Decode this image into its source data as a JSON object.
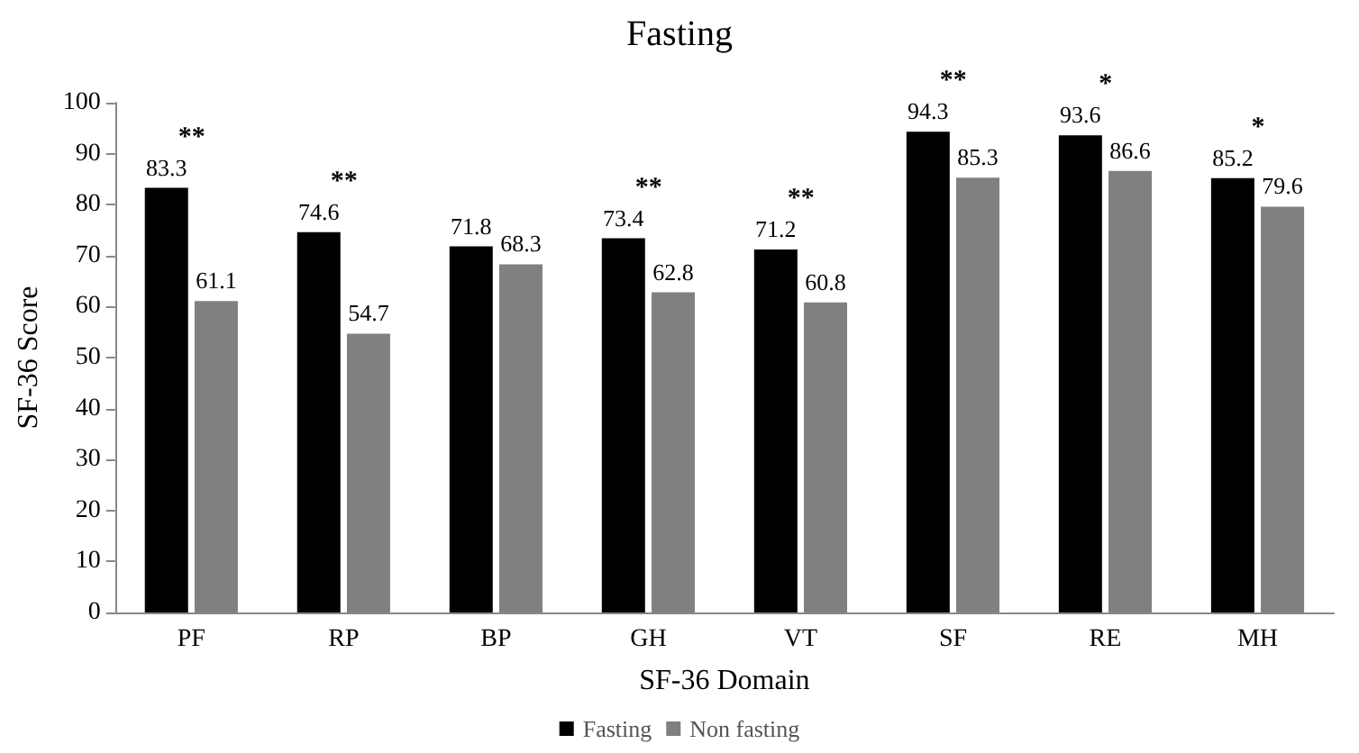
{
  "chart_data": {
    "type": "bar",
    "title": "Fasting",
    "xlabel": "SF-36 Domain",
    "ylabel": "SF-36 Score",
    "categories": [
      "PF",
      "RP",
      "BP",
      "GH",
      "VT",
      "SF",
      "RE",
      "MH"
    ],
    "series": [
      {
        "name": "Fasting",
        "color": "#000000",
        "values": [
          83.3,
          74.6,
          71.8,
          73.4,
          71.2,
          94.3,
          93.6,
          85.2
        ]
      },
      {
        "name": "Non fasting",
        "color": "#808080",
        "values": [
          61.1,
          54.7,
          68.3,
          62.8,
          60.8,
          85.3,
          86.6,
          79.6
        ]
      }
    ],
    "ylim": [
      0,
      100
    ],
    "yticks": [
      0,
      10,
      20,
      30,
      40,
      50,
      60,
      70,
      80,
      90,
      100
    ],
    "data_labels": true,
    "grid": false,
    "legend": "bottom",
    "annotations": [
      {
        "text": "**",
        "x": "PF",
        "y": 83.3
      },
      {
        "text": "**",
        "x": "RP",
        "y": 74.6
      },
      {
        "text": "**",
        "x": "GH",
        "y": 73.4
      },
      {
        "text": "**",
        "x": "VT",
        "y": 71.2
      },
      {
        "text": "**",
        "x": "SF",
        "y": 94.3
      },
      {
        "text": "*",
        "x": "RE",
        "y": 93.6
      },
      {
        "text": "*",
        "x": "MH",
        "y": 85.2
      }
    ]
  }
}
